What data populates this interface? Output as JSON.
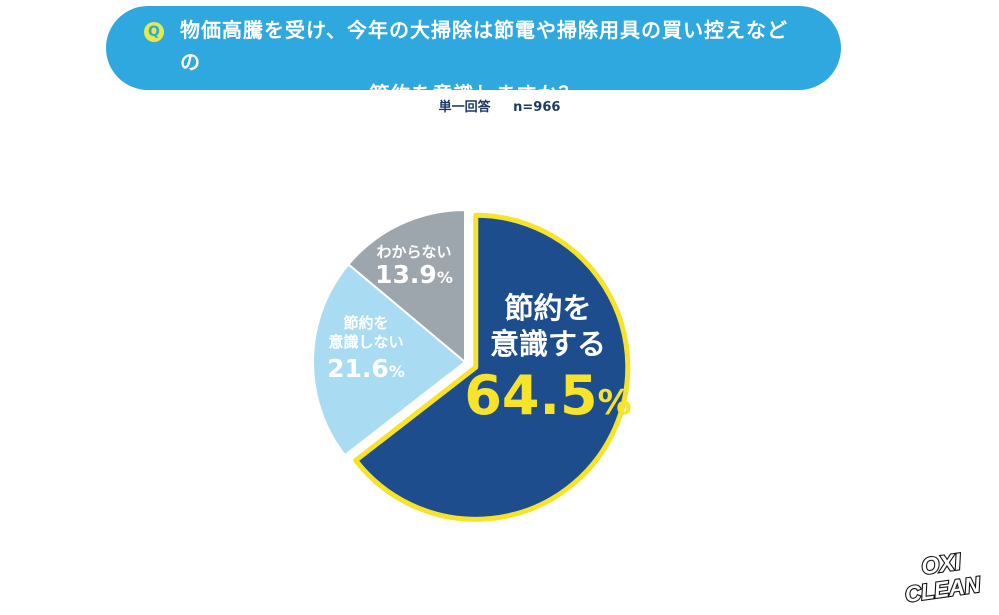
{
  "question": {
    "mark": "Q",
    "line1": "物価高騰を受け、今年の大掃除は節電や掃除用具の買い控えなどの",
    "line2": "節約を意識しますか？"
  },
  "meta": {
    "answer_type": "単一回答",
    "sample": "n=966"
  },
  "chart_data": {
    "type": "pie",
    "slices": [
      {
        "label_lines": [
          "節約を",
          "意識する"
        ],
        "value": 64.5,
        "value_text": "64.5",
        "color": "#1d4d8c",
        "highlight": true
      },
      {
        "label_lines": [
          "節約を",
          "意識しない"
        ],
        "value": 21.6,
        "value_text": "21.6",
        "color": "#a9dcf3",
        "highlight": false
      },
      {
        "label_lines": [
          "わからない"
        ],
        "value": 13.9,
        "value_text": "13.9",
        "color": "#9ea6ad",
        "highlight": false
      }
    ],
    "unit": "%",
    "highlight_outline": "#f7e32a"
  },
  "logo": {
    "line1": "OXI",
    "line2": "CLEAN"
  },
  "colors": {
    "banner": "#2ea8df",
    "accent_yellow": "#f7e32a",
    "navy": "#1d3a66"
  }
}
